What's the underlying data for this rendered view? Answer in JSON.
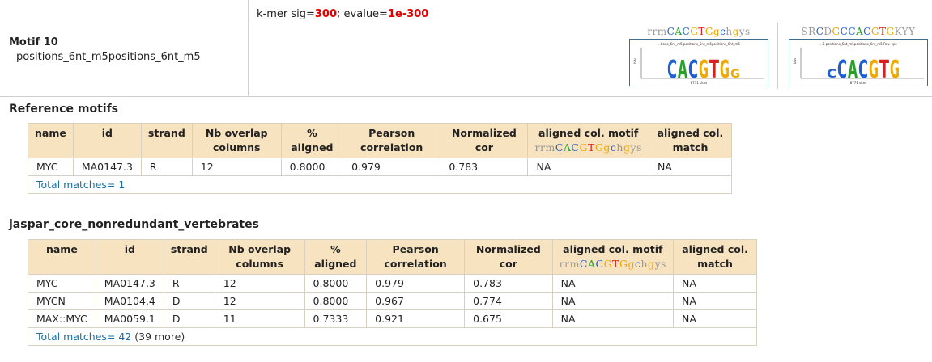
{
  "motif": {
    "title": "Motif 10",
    "subtitle": "positions_6nt_m5positions_6nt_m5",
    "sig_label": "k-mer sig=",
    "sig_value": "300",
    "sep": "; evalue=",
    "evalue": "1e-300"
  },
  "logos": [
    {
      "consensus": "rrmCACGTGgchgys",
      "caption": "...tions_6nt_m5 positions_6nt_m5positions_6nt_m5",
      "letters": "CACGTGG",
      "sites": "8771 sites"
    },
    {
      "consensus": "SRCDGCCACGTGKYY",
      "caption": "...5 positions_6nt_m5positions_6nt_m5 Rev. cpl.",
      "letters": "CCACGTG",
      "sites": "8771 sites"
    }
  ],
  "colors": {
    "A": "#28a028",
    "C": "#1f5fd0",
    "G": "#f0a800",
    "T": "#d82020",
    "header_bg": "#f7e3c0",
    "red": "#e00000",
    "link": "#1a6ea0"
  },
  "headers": [
    "name",
    "id",
    "strand",
    "Nb overlap columns",
    "% aligned",
    "Pearson correlation",
    "Normalized cor",
    "aligned col. motif",
    "aligned col. match"
  ],
  "header_consensus": "rrmCACGTGgchgys",
  "reference": {
    "title": "Reference motifs",
    "rows": [
      [
        "MYC",
        "MA0147.3",
        "R",
        "12",
        "0.8000",
        "0.979",
        "0.783",
        "NA",
        "NA"
      ]
    ],
    "total_label": "Total matches= 1",
    "more": ""
  },
  "jaspar": {
    "title": "jaspar_core_nonredundant_vertebrates",
    "rows": [
      [
        "MYC",
        "MA0147.3",
        "R",
        "12",
        "0.8000",
        "0.979",
        "0.783",
        "NA",
        "NA"
      ],
      [
        "MYCN",
        "MA0104.4",
        "D",
        "12",
        "0.8000",
        "0.967",
        "0.774",
        "NA",
        "NA"
      ],
      [
        "MAX::MYC",
        "MA0059.1",
        "D",
        "11",
        "0.7333",
        "0.921",
        "0.675",
        "NA",
        "NA"
      ]
    ],
    "total_label": "Total matches= 42",
    "more": " (39 more)"
  }
}
